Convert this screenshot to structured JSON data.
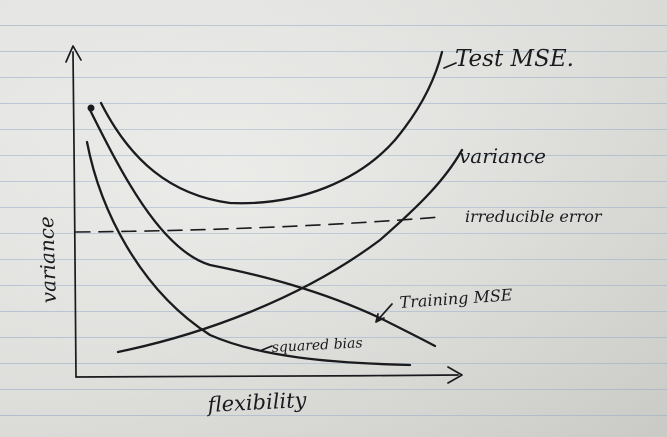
{
  "labels": {
    "test_mse": "Test MSE.",
    "variance_curve": "variance",
    "irreducible_error": "irreducible error",
    "training_mse": "Training MSE",
    "squared_bias": "squared bias",
    "x_axis": "flexibility",
    "y_axis": "variance"
  }
}
